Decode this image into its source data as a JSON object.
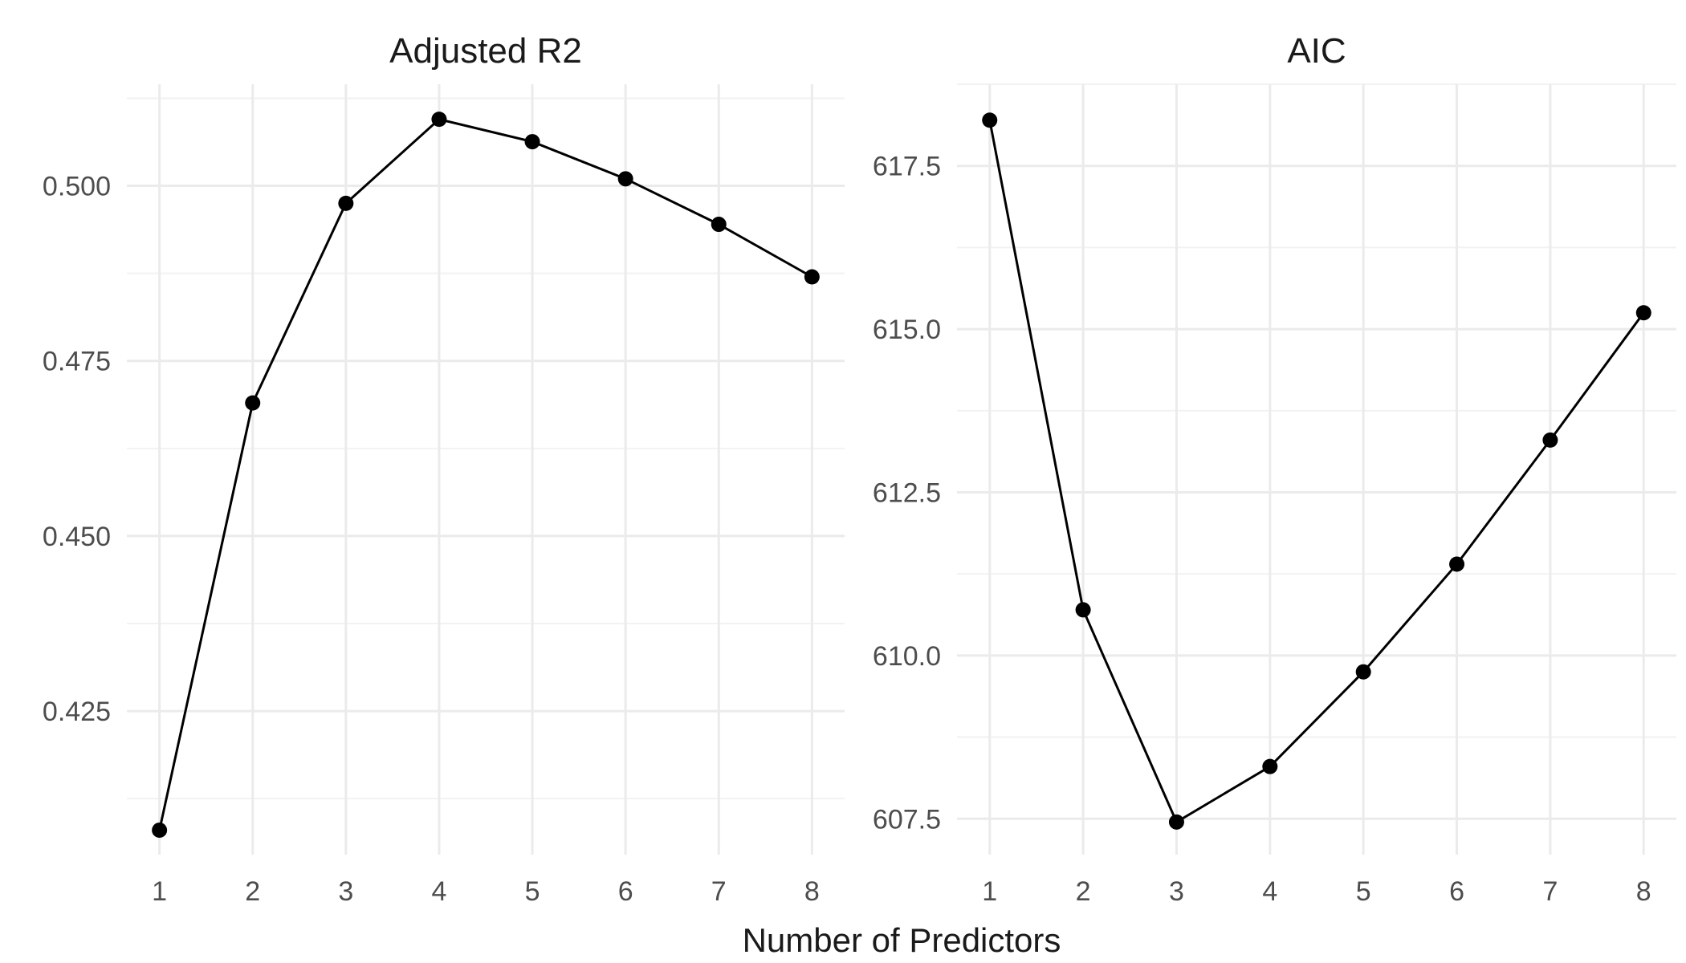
{
  "chart_data": [
    {
      "type": "line",
      "title": "Adjusted R2",
      "xlabel": "",
      "ylabel": "",
      "x": [
        1,
        2,
        3,
        4,
        5,
        6,
        7,
        8
      ],
      "values": [
        0.408,
        0.469,
        0.4975,
        0.5095,
        0.5063,
        0.501,
        0.4945,
        0.487
      ],
      "xlim": [
        0.65,
        8.35
      ],
      "ylim": [
        0.4045,
        0.5145
      ],
      "x_ticks": [
        1,
        2,
        3,
        4,
        5,
        6,
        7,
        8
      ],
      "x_tick_labels": [
        "1",
        "2",
        "3",
        "4",
        "5",
        "6",
        "7",
        "8"
      ],
      "y_ticks": [
        0.425,
        0.45,
        0.475,
        0.5
      ],
      "y_tick_labels": [
        "0.425",
        "0.450",
        "0.475",
        "0.500"
      ],
      "grid": true,
      "markers": true,
      "line_color": "#000000"
    },
    {
      "type": "line",
      "title": "AIC",
      "xlabel": "",
      "ylabel": "",
      "x": [
        1,
        2,
        3,
        4,
        5,
        6,
        7,
        8
      ],
      "values": [
        618.2,
        610.7,
        607.45,
        608.3,
        609.75,
        611.4,
        613.3,
        615.25
      ],
      "xlim": [
        0.65,
        8.35
      ],
      "ylim": [
        606.95,
        618.75
      ],
      "x_ticks": [
        1,
        2,
        3,
        4,
        5,
        6,
        7,
        8
      ],
      "x_tick_labels": [
        "1",
        "2",
        "3",
        "4",
        "5",
        "6",
        "7",
        "8"
      ],
      "y_ticks": [
        607.5,
        610.0,
        612.5,
        615.0,
        617.5
      ],
      "y_tick_labels": [
        "607.5",
        "610.0",
        "612.5",
        "615.0",
        "617.5"
      ],
      "grid": true,
      "markers": true,
      "line_color": "#000000"
    }
  ],
  "shared_xlabel": "Number of Predictors"
}
